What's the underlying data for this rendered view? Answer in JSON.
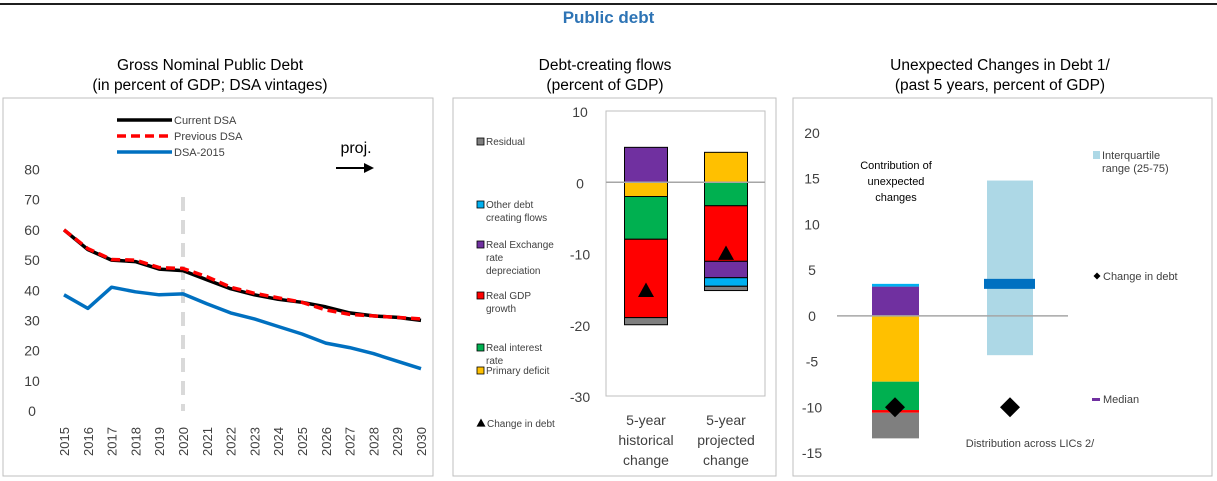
{
  "page": {
    "title": "Public debt"
  },
  "chart_data": [
    {
      "type": "line",
      "title": [
        "Gross Nominal Public Debt",
        "(in percent of GDP; DSA vintages)"
      ],
      "x": [
        2015,
        2016,
        2017,
        2018,
        2019,
        2020,
        2021,
        2022,
        2023,
        2024,
        2025,
        2026,
        2027,
        2028,
        2029,
        2030
      ],
      "series": [
        {
          "name": "Current DSA",
          "color": "#000000",
          "style": "solid",
          "values": [
            60,
            53.5,
            50,
            49.5,
            47,
            46.5,
            43.5,
            40.5,
            38.5,
            37,
            36,
            34.5,
            32.5,
            31.5,
            31,
            30
          ]
        },
        {
          "name": "Previous DSA",
          "color": "#ff0000",
          "style": "dashed",
          "values": [
            60,
            53.8,
            50.2,
            50,
            47.5,
            47.2,
            44.5,
            41,
            39,
            37.5,
            36,
            33.5,
            32,
            31.5,
            31,
            30.5
          ]
        },
        {
          "name": "DSA-2015",
          "color": "#0070c0",
          "style": "solid",
          "values": [
            38.5,
            34,
            41,
            39.5,
            38.5,
            38.8,
            35.5,
            32.5,
            30.5,
            28,
            25.5,
            22.5,
            21,
            19,
            16.5,
            14
          ]
        }
      ],
      "ylim": [
        0,
        80
      ],
      "yticks": [
        0,
        10,
        20,
        30,
        40,
        50,
        60,
        70,
        80
      ],
      "projection_marker_year": 2020,
      "annotation": "proj.",
      "grid": false,
      "legend": "top"
    },
    {
      "type": "bar",
      "stacked": true,
      "title": [
        "Debt-creating flows",
        "(percent of GDP)"
      ],
      "categories": [
        [
          "5-year",
          "historical",
          "change"
        ],
        [
          "5-year",
          "projected",
          "change"
        ]
      ],
      "ylim": [
        -30,
        10
      ],
      "yticks": [
        10,
        0,
        -10,
        -20,
        -30
      ],
      "series": [
        {
          "name": "Primary deficit",
          "color": "#ffc000",
          "values": [
            -2,
            4.2
          ]
        },
        {
          "name": "Real interest rate",
          "color": "#00b050",
          "values": [
            -6,
            -3.3
          ]
        },
        {
          "name": "Real GDP growth",
          "color": "#ff0000",
          "values": [
            -11,
            -7.8
          ]
        },
        {
          "name": "Real Exchange rate depreciation",
          "color": "#7030a0",
          "values": [
            4.9,
            -2.3
          ]
        },
        {
          "name": "Other debt creating flows",
          "color": "#00b0f0",
          "values": [
            0,
            -1.2
          ]
        },
        {
          "name": "Residual",
          "color": "#7f7f7f",
          "values": [
            -1,
            -0.6
          ]
        }
      ],
      "change_in_debt": {
        "name": "Change in debt",
        "values": [
          -15.2,
          -10
        ]
      },
      "legend": "left"
    },
    {
      "type": "bar",
      "stacked": true,
      "title": [
        "Unexpected Changes in Debt 1/",
        "(past 5 years, percent of GDP)"
      ],
      "ylim": [
        -15,
        20
      ],
      "yticks": [
        20,
        15,
        10,
        5,
        0,
        -5,
        -10,
        -15
      ],
      "contribution_label": [
        "Contribution of",
        "unexpected",
        "changes"
      ],
      "contribution": [
        {
          "color": "#ffc000",
          "value": -7.2
        },
        {
          "color": "#00b050",
          "value": -3.1
        },
        {
          "color": "#ff0000",
          "value": -0.3
        },
        {
          "color": "#7f7f7f",
          "value": -2.8
        },
        {
          "color": "#7030a0",
          "value": 3.2
        },
        {
          "color": "#00b0f0",
          "value": 0.3
        }
      ],
      "change_in_debt": {
        "name": "Change in debt",
        "values": [
          -10,
          -10
        ]
      },
      "interquartile_range": {
        "name": "Interquartile range (25-75)",
        "color": "#add8e6",
        "low": -4.3,
        "high": 14.8
      },
      "median": {
        "name": "Median",
        "color": "#0070c0",
        "value": 3.5
      },
      "distribution_label": "Distribution across LICs 2/",
      "legend": "right"
    }
  ]
}
